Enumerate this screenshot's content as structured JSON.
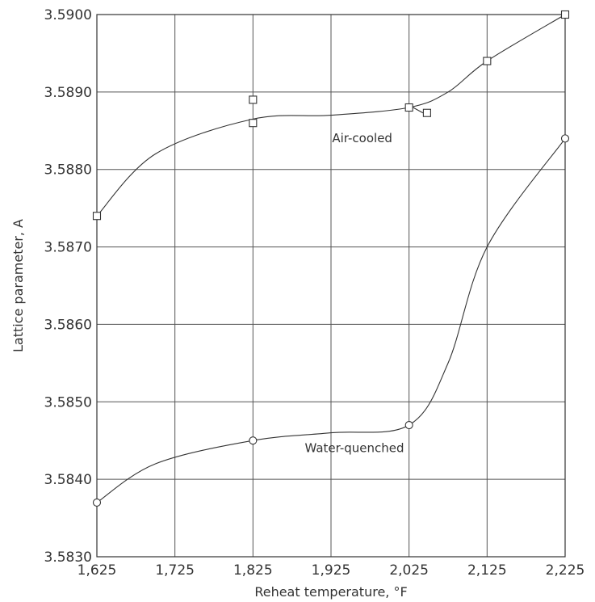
{
  "chart_data": {
    "type": "line",
    "title": "",
    "xlabel": "Reheat temperature, °F",
    "ylabel": "Lattice parameter, A",
    "xlim": [
      1625,
      2225
    ],
    "ylim": [
      3.583,
      3.59
    ],
    "x_ticks": [
      {
        "value": 1625,
        "label": "1,625"
      },
      {
        "value": 1725,
        "label": "1,725"
      },
      {
        "value": 1825,
        "label": "1,825"
      },
      {
        "value": 1925,
        "label": "1,925"
      },
      {
        "value": 2025,
        "label": "2,025"
      },
      {
        "value": 2125,
        "label": "2,125"
      },
      {
        "value": 2225,
        "label": "2,225"
      }
    ],
    "y_ticks": [
      {
        "value": 3.583,
        "label": "3.5830"
      },
      {
        "value": 3.584,
        "label": "3.5840"
      },
      {
        "value": 3.585,
        "label": "3.5850"
      },
      {
        "value": 3.586,
        "label": "3.5860"
      },
      {
        "value": 3.587,
        "label": "3.5870"
      },
      {
        "value": 3.588,
        "label": "3.5880"
      },
      {
        "value": 3.589,
        "label": "3.5890"
      },
      {
        "value": 3.59,
        "label": "3.5900"
      }
    ],
    "grid": true,
    "legend": "none",
    "series": [
      {
        "name": "Air-cooled",
        "marker": "square",
        "points": [
          {
            "x": 1625,
            "y": 3.5874
          },
          {
            "x": 1825,
            "y": 3.5889
          },
          {
            "x": 1825,
            "y": 3.5886
          },
          {
            "x": 2025,
            "y": 3.5888
          },
          {
            "x": 2048,
            "y": 3.58873
          },
          {
            "x": 2125,
            "y": 3.5894
          },
          {
            "x": 2225,
            "y": 3.59
          }
        ],
        "curve": [
          [
            1625,
            3.5874
          ],
          [
            1700,
            3.5882
          ],
          [
            1825,
            3.58865
          ],
          [
            1925,
            3.5887
          ],
          [
            2025,
            3.5888
          ],
          [
            2075,
            3.589
          ],
          [
            2125,
            3.5894
          ],
          [
            2225,
            3.59
          ]
        ]
      },
      {
        "name": "Water-quenched",
        "marker": "circle",
        "points": [
          {
            "x": 1625,
            "y": 3.5837
          },
          {
            "x": 1825,
            "y": 3.5845
          },
          {
            "x": 2025,
            "y": 3.5847
          },
          {
            "x": 2225,
            "y": 3.5884
          }
        ],
        "curve": [
          [
            1625,
            3.5837
          ],
          [
            1700,
            3.5842
          ],
          [
            1825,
            3.5845
          ],
          [
            1925,
            3.5846
          ],
          [
            2025,
            3.5847
          ],
          [
            2075,
            3.5855
          ],
          [
            2125,
            3.587
          ],
          [
            2225,
            3.5884
          ]
        ]
      }
    ],
    "annotations": [
      {
        "text": "Air-cooled",
        "x": 1965,
        "y": 3.58835
      },
      {
        "text": "Water-quenched",
        "x": 1955,
        "y": 3.58435
      }
    ]
  }
}
